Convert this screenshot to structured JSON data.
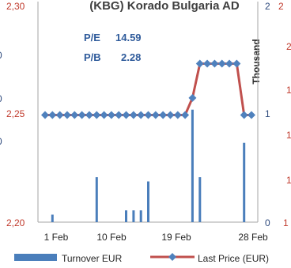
{
  "chart_data": {
    "type": "bar+line",
    "title": "(KBG) Korado Bulgaria AD",
    "annotations": {
      "pe_label": "P/E",
      "pe_value": "14.59",
      "pb_label": "P/B",
      "pb_value": "2.28"
    },
    "x_ticks": [
      "1 Feb",
      "10 Feb",
      "19 Feb",
      "28 Feb"
    ],
    "x_day_range": [
      1,
      29
    ],
    "price_axis": {
      "ticks": [
        "2,30",
        "2,25",
        "2,20"
      ],
      "left_clip_ticks": [
        "0",
        "0",
        "0"
      ],
      "ylim": [
        2.2,
        2.3
      ]
    },
    "turnover_axis": {
      "label": "Thousand",
      "ticks": [
        "2",
        "1",
        "0"
      ],
      "ylim": [
        0,
        2
      ]
    },
    "far_right_ticks": [
      "2",
      "2",
      "1",
      "1",
      "1",
      "1"
    ],
    "series": [
      {
        "name": "Turnover EUR",
        "type": "bar",
        "axis": "turnover",
        "color": "#4a7ebb",
        "points": [
          {
            "day": 2,
            "value": 0.07
          },
          {
            "day": 8,
            "value": 0.42
          },
          {
            "day": 12,
            "value": 0.11
          },
          {
            "day": 13,
            "value": 0.11
          },
          {
            "day": 14,
            "value": 0.11
          },
          {
            "day": 15,
            "value": 0.38
          },
          {
            "day": 21,
            "value": 1.05
          },
          {
            "day": 22,
            "value": 0.42
          },
          {
            "day": 28,
            "value": 0.74
          }
        ]
      },
      {
        "name": "Last Price (EUR)",
        "type": "line",
        "axis": "price",
        "color": "#c0504d",
        "marker_color": "#4f81bd",
        "points": [
          {
            "day": 1,
            "value": 2.25
          },
          {
            "day": 2,
            "value": 2.25
          },
          {
            "day": 3,
            "value": 2.25
          },
          {
            "day": 4,
            "value": 2.25
          },
          {
            "day": 5,
            "value": 2.25
          },
          {
            "day": 6,
            "value": 2.25
          },
          {
            "day": 7,
            "value": 2.25
          },
          {
            "day": 8,
            "value": 2.25
          },
          {
            "day": 9,
            "value": 2.25
          },
          {
            "day": 10,
            "value": 2.25
          },
          {
            "day": 11,
            "value": 2.25
          },
          {
            "day": 12,
            "value": 2.25
          },
          {
            "day": 13,
            "value": 2.25
          },
          {
            "day": 14,
            "value": 2.25
          },
          {
            "day": 15,
            "value": 2.25
          },
          {
            "day": 16,
            "value": 2.25
          },
          {
            "day": 17,
            "value": 2.25
          },
          {
            "day": 18,
            "value": 2.25
          },
          {
            "day": 19,
            "value": 2.25
          },
          {
            "day": 20,
            "value": 2.25
          },
          {
            "day": 21,
            "value": 2.258
          },
          {
            "day": 22,
            "value": 2.274
          },
          {
            "day": 23,
            "value": 2.274
          },
          {
            "day": 24,
            "value": 2.274
          },
          {
            "day": 25,
            "value": 2.274
          },
          {
            "day": 26,
            "value": 2.274
          },
          {
            "day": 27,
            "value": 2.274
          },
          {
            "day": 28,
            "value": 2.25
          },
          {
            "day": 29,
            "value": 2.25
          }
        ]
      }
    ],
    "legend_position": "bottom",
    "grid": false
  }
}
